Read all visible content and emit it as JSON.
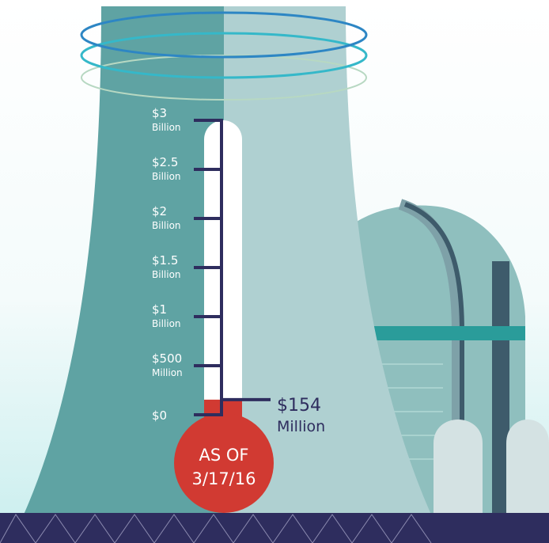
{
  "chart_data": {
    "type": "thermometer",
    "ylim": [
      0,
      3000000000
    ],
    "yticks": [
      {
        "value": 0,
        "label": "$0"
      },
      {
        "value": 500000000,
        "label": "$500 Million"
      },
      {
        "value": 1000000000,
        "label": "$1 Billion"
      },
      {
        "value": 1500000000,
        "label": "$1.5 Billion"
      },
      {
        "value": 2000000000,
        "label": "$2 Billion"
      },
      {
        "value": 2500000000,
        "label": "$2.5 Billion"
      },
      {
        "value": 3000000000,
        "label": "$3 Billion"
      }
    ],
    "values": [
      154000000
    ],
    "value_labels": [
      "$154 Million"
    ],
    "color": "#d13a32",
    "annotation": "AS OF 3/17/16"
  }
}
